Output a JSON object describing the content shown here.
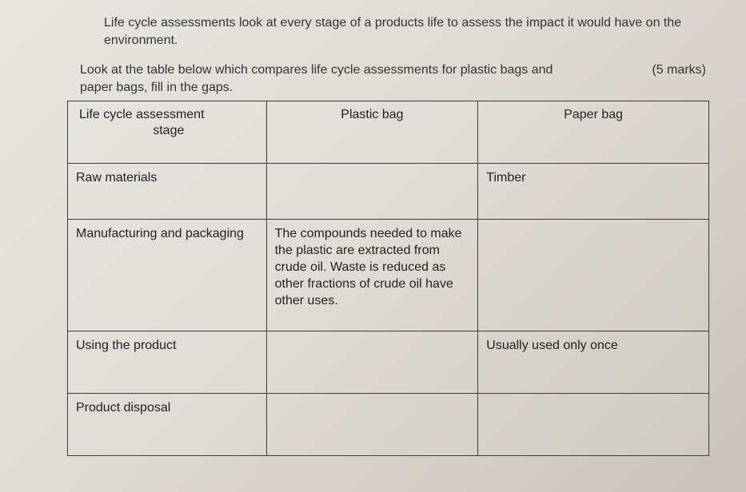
{
  "intro": "Life cycle assessments look at every stage of a products life to assess the impact it would have on the environment.",
  "prompt_line1": "Look at the table below which compares life cycle assessments for plastic bags and",
  "prompt_line2": "paper bags, fill in the gaps.",
  "marks": "(5 marks)",
  "table": {
    "columns": [
      "Life cycle assessment stage",
      "Plastic bag",
      "Paper bag"
    ],
    "header_col0_line1": "Life cycle assessment",
    "header_col0_line2": "stage",
    "rows": [
      {
        "stage": "Raw materials",
        "plastic": "",
        "paper": "Timber"
      },
      {
        "stage": "Manufacturing and packaging",
        "plastic": "The compounds needed to make the plastic are extracted from crude oil. Waste is reduced as other fractions of crude oil have other uses.",
        "paper": ""
      },
      {
        "stage": "Using the product",
        "plastic": "",
        "paper": "Usually used only once"
      },
      {
        "stage": "Product disposal",
        "plastic": "",
        "paper": ""
      }
    ],
    "border_color": "#3a3a3a",
    "text_color": "#222222",
    "font_size_pt": 12,
    "col_widths_pct": [
      31,
      33,
      36
    ]
  },
  "background_gradient": [
    "#e8e6e1",
    "#ddd9d2",
    "#c8c4bb"
  ]
}
